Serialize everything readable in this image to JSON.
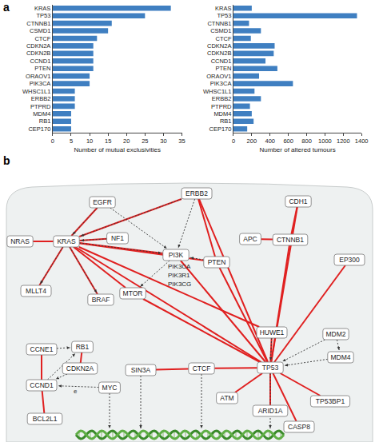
{
  "chart_data": [
    {
      "type": "bar",
      "orientation": "horizontal",
      "categories": [
        "KRAS",
        "TP53",
        "CTNNB1",
        "CSMD1",
        "CTCF",
        "CDKN2A",
        "CDKN2B",
        "CCND1",
        "PTEN",
        "ORAOV1",
        "PIK3CA",
        "WHSC1L1",
        "ERBB2",
        "PTPRD",
        "MDM4",
        "RB1",
        "CEP170"
      ],
      "values": [
        32,
        25,
        16,
        15,
        12,
        11,
        11,
        11,
        11,
        10,
        10,
        6,
        6,
        6,
        5,
        5,
        5
      ],
      "color": "#3f7fc1",
      "x_label": "Number of mutual exclusivities",
      "xlim": [
        0,
        35
      ],
      "xticks": [
        0,
        5,
        10,
        15,
        20,
        25,
        30,
        35
      ],
      "grid": false
    },
    {
      "type": "bar",
      "orientation": "horizontal",
      "categories": [
        "KRAS",
        "TP53",
        "CTNNB1",
        "CSMD1",
        "CTCF",
        "CDKN2A",
        "CDKN2B",
        "CCND1",
        "PTEN",
        "ORAOV1",
        "PIK3CA",
        "WHSC1L1",
        "ERBB2",
        "PTPRD",
        "MDM4",
        "RB1",
        "CEP170"
      ],
      "values": [
        200,
        1350,
        170,
        300,
        190,
        450,
        440,
        350,
        480,
        280,
        650,
        230,
        300,
        180,
        200,
        220,
        150
      ],
      "color": "#3f7fc1",
      "x_label": "Number of altered tumours",
      "xlim": [
        0,
        1400
      ],
      "xticks": [
        0,
        200,
        400,
        600,
        800,
        1000,
        1200,
        1400
      ],
      "grid": false
    }
  ],
  "panel_labels": [
    "a",
    "b"
  ],
  "diagram": {
    "nodes": [
      {
        "label": "EGFR"
      },
      {
        "label": "ERBB2"
      },
      {
        "label": "CDH1"
      },
      {
        "label": "NRAS"
      },
      {
        "label": "KRAS"
      },
      {
        "label": "NF1"
      },
      {
        "label": "PI3K",
        "members": [
          "PIK3CA",
          "PIK3R1",
          "PIK3CG"
        ]
      },
      {
        "label": "PTEN"
      },
      {
        "label": "APC"
      },
      {
        "label": "CTNNB1"
      },
      {
        "label": "EP300"
      },
      {
        "label": "MLLT4"
      },
      {
        "label": "BRAF"
      },
      {
        "label": "MTOR"
      },
      {
        "label": "HUWE1"
      },
      {
        "label": "MDM2"
      },
      {
        "label": "MDM4"
      },
      {
        "label": "CCNE1"
      },
      {
        "label": "RB1"
      },
      {
        "label": "CDKN2A"
      },
      {
        "label": "SIN3A"
      },
      {
        "label": "CTCF"
      },
      {
        "label": "TP53"
      },
      {
        "label": "CCND1"
      },
      {
        "label": "MYC"
      },
      {
        "label": "ATM"
      },
      {
        "label": "TP53BP1"
      },
      {
        "label": "BCL2L1"
      },
      {
        "label": "ARID1A"
      },
      {
        "label": "CASP8"
      }
    ],
    "edges": [
      {
        "source": "NRAS",
        "target": "KRAS",
        "kind": "mutual_exclusivity"
      },
      {
        "source": "KRAS",
        "target": "NF1",
        "kind": "mutual_exclusivity"
      },
      {
        "source": "KRAS",
        "target": "EGFR",
        "kind": "mutual_exclusivity"
      },
      {
        "source": "KRAS",
        "target": "ERBB2",
        "kind": "mutual_exclusivity"
      },
      {
        "source": "KRAS",
        "target": "PI3K",
        "kind": "mutual_exclusivity"
      },
      {
        "source": "KRAS",
        "target": "PTEN",
        "kind": "mutual_exclusivity"
      },
      {
        "source": "KRAS",
        "target": "MTOR",
        "kind": "mutual_exclusivity"
      },
      {
        "source": "KRAS",
        "target": "MLLT4",
        "kind": "mutual_exclusivity"
      },
      {
        "source": "KRAS",
        "target": "BRAF",
        "kind": "mutual_exclusivity"
      },
      {
        "source": "KRAS",
        "target": "TP53",
        "kind": "mutual_exclusivity"
      },
      {
        "source": "KRAS",
        "target": "HUWE1",
        "kind": "mutual_exclusivity"
      },
      {
        "source": "ERBB2",
        "target": "PTEN",
        "kind": "mutual_exclusivity"
      },
      {
        "source": "ERBB2",
        "target": "TP53",
        "kind": "mutual_exclusivity"
      },
      {
        "source": "CDH1",
        "target": "TP53",
        "kind": "mutual_exclusivity"
      },
      {
        "source": "CDH1",
        "target": "CTNNB1",
        "kind": "mutual_exclusivity"
      },
      {
        "source": "APC",
        "target": "CTNNB1",
        "kind": "mutual_exclusivity"
      },
      {
        "source": "CTNNB1",
        "target": "TP53",
        "kind": "mutual_exclusivity"
      },
      {
        "source": "EP300",
        "target": "TP53",
        "kind": "mutual_exclusivity"
      },
      {
        "source": "PTEN",
        "target": "TP53",
        "kind": "mutual_exclusivity"
      },
      {
        "source": "PI3K",
        "target": "TP53",
        "kind": "mutual_exclusivity"
      },
      {
        "source": "MTOR",
        "target": "TP53",
        "kind": "mutual_exclusivity"
      },
      {
        "source": "HUWE1",
        "target": "TP53",
        "kind": "mutual_exclusivity"
      },
      {
        "source": "TP53BP1",
        "target": "TP53",
        "kind": "mutual_exclusivity"
      },
      {
        "source": "CASP8",
        "target": "TP53",
        "kind": "mutual_exclusivity"
      },
      {
        "source": "ARID1A",
        "target": "TP53",
        "kind": "mutual_exclusivity"
      },
      {
        "source": "ATM",
        "target": "TP53",
        "kind": "mutual_exclusivity"
      },
      {
        "source": "CTCF",
        "target": "TP53",
        "kind": "mutual_exclusivity"
      },
      {
        "source": "SIN3A",
        "target": "CTCF",
        "kind": "mutual_exclusivity"
      },
      {
        "source": "CCNE1",
        "target": "CCND1",
        "kind": "mutual_exclusivity"
      },
      {
        "source": "CDKN2A",
        "target": "RB1",
        "kind": "mutual_exclusivity"
      },
      {
        "source": "CCND1",
        "target": "BCL2L1",
        "kind": "mutual_exclusivity"
      },
      {
        "source": "EGFR",
        "target": "KRAS",
        "kind": "interaction"
      },
      {
        "source": "EGFR",
        "target": "PI3K",
        "kind": "interaction"
      },
      {
        "source": "ERBB2",
        "target": "KRAS",
        "kind": "interaction"
      },
      {
        "source": "ERBB2",
        "target": "PI3K",
        "kind": "interaction"
      },
      {
        "source": "NF1",
        "target": "KRAS",
        "kind": "interaction"
      },
      {
        "source": "KRAS",
        "target": "PI3K",
        "kind": "interaction"
      },
      {
        "source": "KRAS",
        "target": "BRAF",
        "kind": "interaction"
      },
      {
        "source": "KRAS",
        "target": "MLLT4",
        "kind": "interaction"
      },
      {
        "source": "PI3K",
        "target": "MTOR",
        "kind": "interaction"
      },
      {
        "source": "PTEN",
        "target": "PI3K",
        "kind": "interaction"
      },
      {
        "source": "MDM2",
        "target": "TP53",
        "kind": "interaction"
      },
      {
        "source": "MDM4",
        "target": "TP53",
        "kind": "interaction"
      },
      {
        "source": "MDM2",
        "target": "MDM4",
        "kind": "interaction"
      },
      {
        "source": "HUWE1",
        "target": "TP53",
        "kind": "interaction"
      },
      {
        "source": "CCND1",
        "target": "RB1",
        "kind": "interaction"
      },
      {
        "source": "CCNE1",
        "target": "RB1",
        "kind": "interaction"
      },
      {
        "source": "CDKN2A",
        "target": "CCND1",
        "kind": "interaction"
      },
      {
        "source": "MYC",
        "target": "CCND1",
        "kind": "interaction",
        "label": "e"
      }
    ],
    "regulates_dna": [
      "MYC",
      "SIN3A",
      "CTCF",
      "TP53"
    ]
  }
}
